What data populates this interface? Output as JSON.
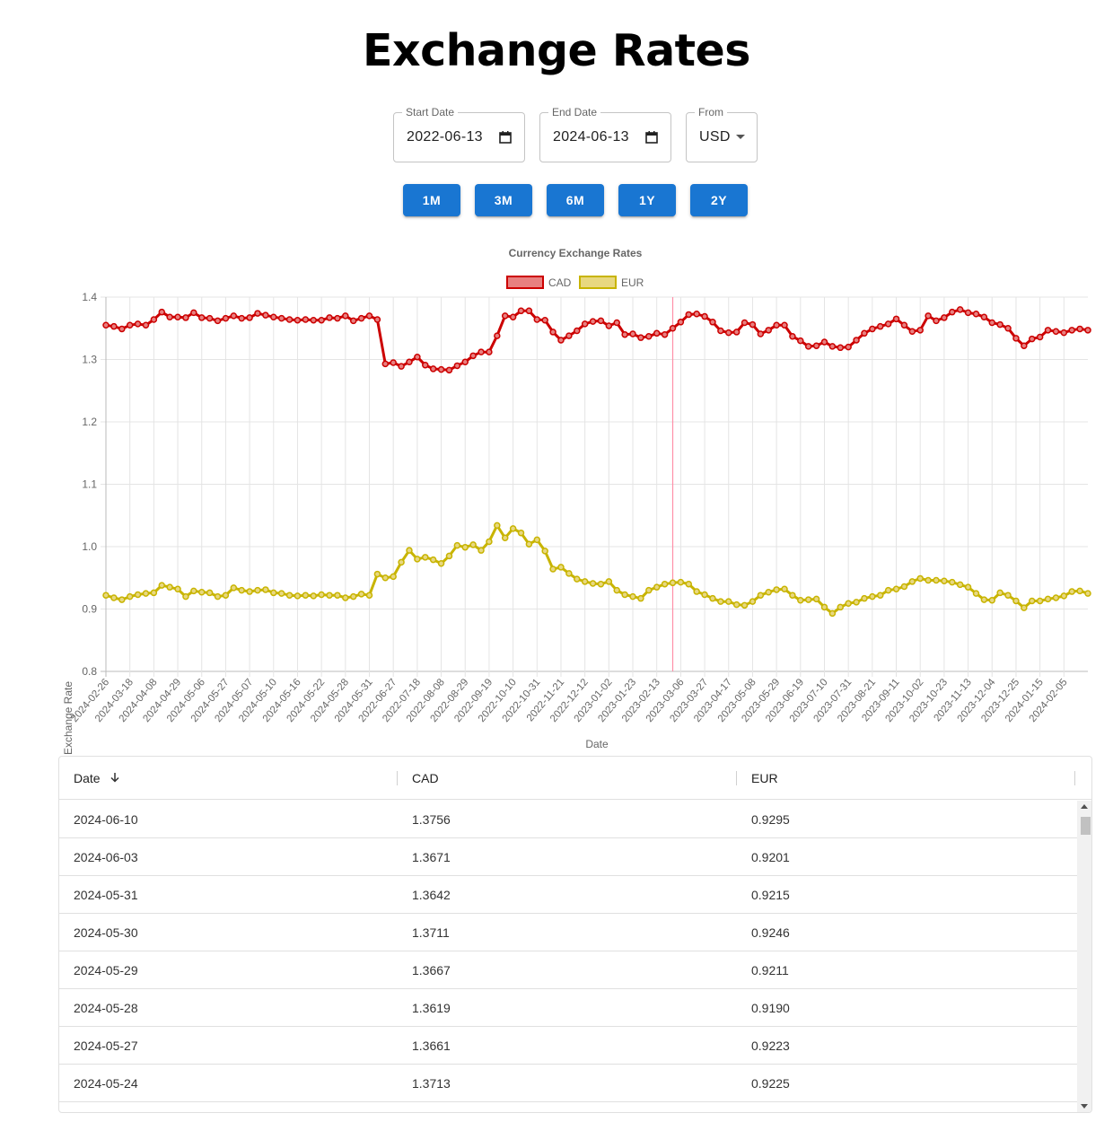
{
  "page": {
    "title": "Exchange Rates"
  },
  "controls": {
    "start_date": {
      "label": "Start Date",
      "value": "2022-06-13"
    },
    "end_date": {
      "label": "End Date",
      "value": "2024-06-13"
    },
    "from": {
      "label": "From",
      "value": "USD"
    },
    "range_buttons": [
      "1M",
      "3M",
      "6M",
      "1Y",
      "2Y"
    ],
    "accent": "#1976d2"
  },
  "chart_data": {
    "type": "line",
    "title": "Currency Exchange Rates",
    "xlabel": "Date",
    "ylabel": "Exchange Rate",
    "ylim": [
      0.8,
      1.4
    ],
    "yticks": [
      "0.8",
      "0.9",
      "1.0",
      "1.1",
      "1.2",
      "1.3",
      "1.4"
    ],
    "grid": true,
    "legend": "top-center",
    "xtick_labels": [
      "2024-02-26",
      "2024-03-18",
      "2024-04-08",
      "2024-04-29",
      "2024-05-06",
      "2024-05-27",
      "2024-05-07",
      "2024-05-10",
      "2024-05-16",
      "2024-05-22",
      "2024-05-28",
      "2024-05-31",
      "2022-06-27",
      "2022-07-18",
      "2022-08-08",
      "2022-08-29",
      "2022-09-19",
      "2022-10-10",
      "2022-10-31",
      "2022-11-21",
      "2022-12-12",
      "2023-01-02",
      "2023-01-23",
      "2023-02-13",
      "2023-03-06",
      "2023-03-27",
      "2023-04-17",
      "2023-05-08",
      "2023-05-29",
      "2023-06-19",
      "2023-07-10",
      "2023-07-31",
      "2023-08-21",
      "2023-09-11",
      "2023-10-02",
      "2023-10-23",
      "2023-11-13",
      "2023-12-04",
      "2023-12-25",
      "2024-01-15",
      "2024-02-05"
    ],
    "highlight_index": 71,
    "series": [
      {
        "name": "CAD",
        "color": "#cc0000",
        "fill": "#e88080",
        "values": [
          1.355,
          1.353,
          1.349,
          1.355,
          1.357,
          1.355,
          1.364,
          1.376,
          1.368,
          1.368,
          1.367,
          1.375,
          1.367,
          1.366,
          1.362,
          1.366,
          1.37,
          1.366,
          1.367,
          1.374,
          1.371,
          1.368,
          1.366,
          1.364,
          1.363,
          1.364,
          1.363,
          1.363,
          1.367,
          1.366,
          1.37,
          1.362,
          1.366,
          1.37,
          1.364,
          1.293,
          1.295,
          1.289,
          1.296,
          1.304,
          1.291,
          1.285,
          1.284,
          1.283,
          1.29,
          1.296,
          1.306,
          1.312,
          1.312,
          1.338,
          1.37,
          1.368,
          1.378,
          1.378,
          1.364,
          1.363,
          1.344,
          1.331,
          1.338,
          1.346,
          1.357,
          1.361,
          1.362,
          1.354,
          1.359,
          1.34,
          1.341,
          1.335,
          1.337,
          1.342,
          1.34,
          1.35,
          1.36,
          1.372,
          1.373,
          1.369,
          1.36,
          1.346,
          1.343,
          1.344,
          1.359,
          1.356,
          1.341,
          1.347,
          1.355,
          1.355,
          1.337,
          1.33,
          1.321,
          1.322,
          1.328,
          1.321,
          1.319,
          1.32,
          1.331,
          1.342,
          1.349,
          1.353,
          1.357,
          1.365,
          1.355,
          1.345,
          1.347,
          1.37,
          1.362,
          1.367,
          1.376,
          1.38,
          1.375,
          1.373,
          1.368,
          1.359,
          1.356,
          1.35,
          1.334,
          1.322,
          1.333,
          1.336,
          1.347,
          1.345,
          1.343,
          1.347,
          1.349,
          1.347
        ]
      },
      {
        "name": "EUR",
        "color": "#c8b400",
        "fill": "#e8d880",
        "values": [
          0.922,
          0.918,
          0.915,
          0.92,
          0.923,
          0.925,
          0.926,
          0.938,
          0.935,
          0.932,
          0.92,
          0.929,
          0.927,
          0.926,
          0.92,
          0.922,
          0.934,
          0.93,
          0.928,
          0.93,
          0.931,
          0.926,
          0.925,
          0.922,
          0.921,
          0.922,
          0.921,
          0.923,
          0.922,
          0.922,
          0.918,
          0.92,
          0.924,
          0.922,
          0.956,
          0.95,
          0.952,
          0.975,
          0.994,
          0.98,
          0.983,
          0.979,
          0.973,
          0.985,
          1.002,
          0.999,
          1.003,
          0.994,
          1.008,
          1.034,
          1.014,
          1.029,
          1.022,
          1.004,
          1.011,
          0.993,
          0.964,
          0.967,
          0.957,
          0.948,
          0.944,
          0.941,
          0.94,
          0.944,
          0.93,
          0.923,
          0.92,
          0.917,
          0.93,
          0.935,
          0.94,
          0.942,
          0.943,
          0.94,
          0.928,
          0.923,
          0.917,
          0.912,
          0.912,
          0.907,
          0.906,
          0.912,
          0.922,
          0.927,
          0.931,
          0.932,
          0.922,
          0.914,
          0.915,
          0.916,
          0.903,
          0.893,
          0.903,
          0.909,
          0.911,
          0.917,
          0.92,
          0.922,
          0.93,
          0.932,
          0.936,
          0.944,
          0.949,
          0.946,
          0.946,
          0.945,
          0.943,
          0.939,
          0.935,
          0.925,
          0.915,
          0.914,
          0.926,
          0.922,
          0.913,
          0.902,
          0.913,
          0.913,
          0.916,
          0.918,
          0.921,
          0.928,
          0.929,
          0.925
        ]
      }
    ]
  },
  "table": {
    "columns": [
      "Date",
      "CAD",
      "EUR"
    ],
    "rows": [
      [
        "2024-06-10",
        "1.3756",
        "0.9295"
      ],
      [
        "2024-06-03",
        "1.3671",
        "0.9201"
      ],
      [
        "2024-05-31",
        "1.3642",
        "0.9215"
      ],
      [
        "2024-05-30",
        "1.3711",
        "0.9246"
      ],
      [
        "2024-05-29",
        "1.3667",
        "0.9211"
      ],
      [
        "2024-05-28",
        "1.3619",
        "0.9190"
      ],
      [
        "2024-05-27",
        "1.3661",
        "0.9223"
      ],
      [
        "2024-05-24",
        "1.3713",
        "0.9225"
      ]
    ]
  }
}
